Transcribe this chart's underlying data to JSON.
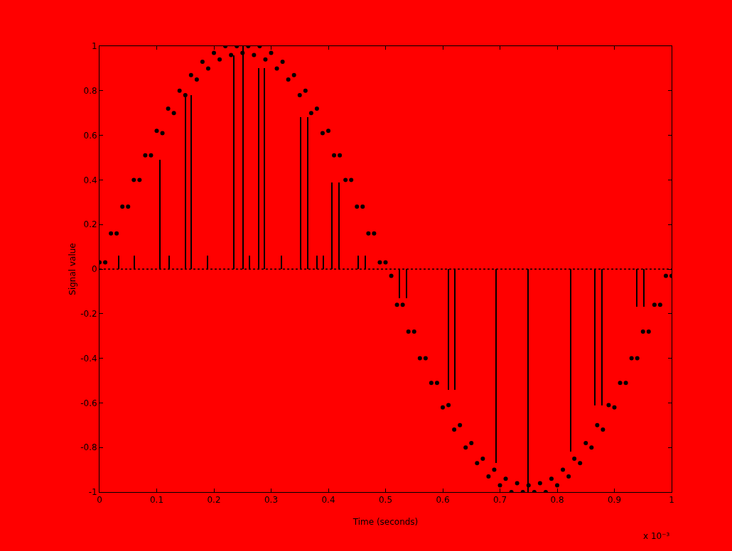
{
  "chart_data": {
    "type": "scatter",
    "xlabel": "Time (seconds)",
    "ylabel": "Signal value",
    "annotations": [
      "x 10⁻³"
    ],
    "xlim": [
      0,
      1
    ],
    "xticks": [
      0,
      0.1,
      0.2,
      0.3,
      0.4,
      0.5,
      0.6,
      0.7,
      0.8,
      0.9,
      1
    ],
    "ylim": [
      -1,
      1
    ],
    "yticks": [
      -1,
      -0.8,
      -0.6,
      -0.4,
      -0.2,
      0,
      0.2,
      0.4,
      0.6,
      0.8,
      1
    ],
    "grid": false,
    "marker": "circle",
    "ref_lines": [
      {
        "axis": "y",
        "value": 0,
        "color": "#000000",
        "line_style": "dotted"
      }
    ],
    "series": [
      {
        "color": "#000000",
        "x": [
          0,
          0.01,
          0.02,
          0.03,
          0.04,
          0.05,
          0.06,
          0.07,
          0.08,
          0.09,
          0.1,
          0.11,
          0.12,
          0.13,
          0.14,
          0.15,
          0.16,
          0.17,
          0.18,
          0.19,
          0.2,
          0.21,
          0.22,
          0.23,
          0.24,
          0.25,
          0.26,
          0.27,
          0.28,
          0.29,
          0.3,
          0.31,
          0.32,
          0.33,
          0.34,
          0.35,
          0.36,
          0.37,
          0.38,
          0.39,
          0.4,
          0.41,
          0.42,
          0.43,
          0.44,
          0.45,
          0.46,
          0.47,
          0.48,
          0.49,
          0.5,
          0.51,
          0.52,
          0.53,
          0.54,
          0.55,
          0.56,
          0.57,
          0.58,
          0.59,
          0.6,
          0.61,
          0.62,
          0.63,
          0.64,
          0.65,
          0.66,
          0.67,
          0.68,
          0.69,
          0.7,
          0.71,
          0.72,
          0.73,
          0.74,
          0.75,
          0.76,
          0.77,
          0.78,
          0.79,
          0.8,
          0.81,
          0.82,
          0.83,
          0.84,
          0.85,
          0.86,
          0.87,
          0.88,
          0.89,
          0.9,
          0.91,
          0.92,
          0.93,
          0.94,
          0.95,
          0.96,
          0.97,
          0.98,
          0.99,
          1
        ],
        "values": [
          0.03,
          0.03,
          0.16,
          0.16,
          0.28,
          0.28,
          0.4,
          0.4,
          0.51,
          0.51,
          0.62,
          0.61,
          0.72,
          0.7,
          0.8,
          0.78,
          0.87,
          0.85,
          0.93,
          0.9,
          0.97,
          0.94,
          1.0,
          0.96,
          1.0,
          0.97,
          1.0,
          0.96,
          1.0,
          0.94,
          0.97,
          0.9,
          0.93,
          0.85,
          0.87,
          0.78,
          0.8,
          0.7,
          0.72,
          0.61,
          0.62,
          0.51,
          0.51,
          0.4,
          0.4,
          0.28,
          0.28,
          0.16,
          0.16,
          0.03,
          0.03,
          -0.03,
          -0.16,
          -0.16,
          -0.28,
          -0.28,
          -0.4,
          -0.4,
          -0.51,
          -0.51,
          -0.62,
          -0.61,
          -0.72,
          -0.7,
          -0.8,
          -0.78,
          -0.87,
          -0.85,
          -0.93,
          -0.9,
          -0.97,
          -0.94,
          -1.0,
          -0.96,
          -1.0,
          -0.97,
          -1.0,
          -0.96,
          -1.0,
          -0.94,
          -0.97,
          -0.9,
          -0.93,
          -0.85,
          -0.87,
          -0.78,
          -0.8,
          -0.7,
          -0.72,
          -0.61,
          -0.62,
          -0.51,
          -0.51,
          -0.4,
          -0.4,
          -0.28,
          -0.28,
          -0.16,
          -0.16,
          -0.03,
          -0.03
        ]
      },
      {
        "type": "bar",
        "color": "#000000",
        "x": [
          0.034,
          0.061,
          0.106,
          0.122,
          0.15,
          0.161,
          0.189,
          0.235,
          0.251,
          0.263,
          0.278,
          0.289,
          0.318,
          0.352,
          0.364,
          0.38,
          0.391,
          0.407,
          0.419,
          0.453,
          0.465,
          0.524,
          0.537,
          0.61,
          0.621,
          0.694,
          0.749,
          0.824,
          0.866,
          0.878,
          0.94,
          0.952
        ],
        "values": [
          0.06,
          0.06,
          0.49,
          0.06,
          0.78,
          0.78,
          0.06,
          0.96,
          1.0,
          0.06,
          0.9,
          0.9,
          0.06,
          0.68,
          0.68,
          0.06,
          0.06,
          0.39,
          0.39,
          0.06,
          0.06,
          -0.13,
          -0.13,
          -0.54,
          -0.54,
          -0.87,
          -1.0,
          -0.82,
          -0.61,
          -0.61,
          -0.17,
          -0.17
        ]
      }
    ]
  }
}
